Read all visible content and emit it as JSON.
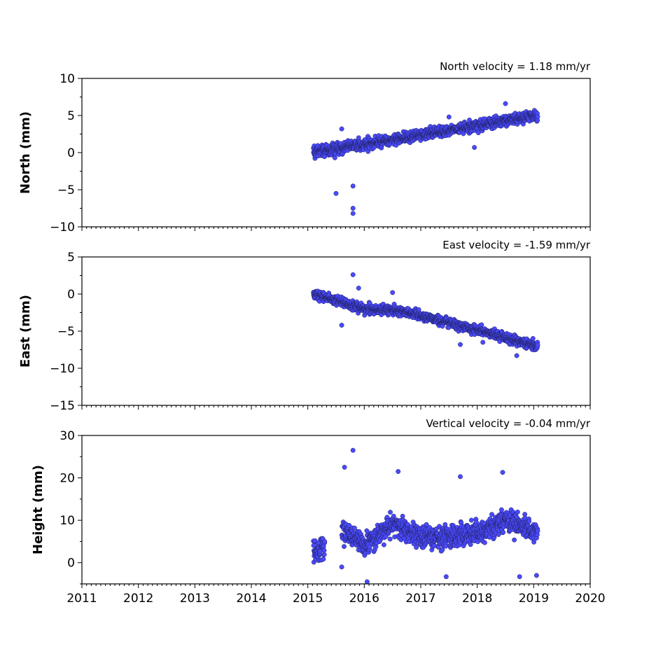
{
  "chart_data": [
    {
      "type": "scatter",
      "title": "North velocity = 1.18 mm/yr",
      "ylabel": "North (mm)",
      "xlabel": "",
      "xlim": [
        2011,
        2020
      ],
      "ylim": [
        -10,
        10
      ],
      "yticks": [
        10,
        5,
        0,
        -5,
        -10
      ],
      "xticks": [
        2011,
        2012,
        2013,
        2014,
        2015,
        2016,
        2017,
        2018,
        2019,
        2020
      ],
      "x_tick_labels_visible": false,
      "marker_color": "#4a4aff",
      "data_range": [
        2015.1,
        2019.07
      ],
      "trend_at": [
        [
          2015.1,
          0.0
        ],
        [
          2019.07,
          5.0
        ]
      ],
      "scatter_sd": 0.9,
      "outliers": [
        [
          2015.5,
          -5.5
        ],
        [
          2015.6,
          3.2
        ],
        [
          2015.8,
          -4.5
        ],
        [
          2015.8,
          -7.5
        ],
        [
          2015.8,
          -8.2
        ],
        [
          2015.9,
          2.0
        ],
        [
          2017.5,
          4.8
        ],
        [
          2017.95,
          0.7
        ],
        [
          2018.5,
          6.6
        ]
      ]
    },
    {
      "type": "scatter",
      "title": "East velocity = -1.59 mm/yr",
      "ylabel": "East (mm)",
      "xlabel": "",
      "xlim": [
        2011,
        2020
      ],
      "ylim": [
        -15,
        5
      ],
      "yticks": [
        5,
        0,
        -5,
        -10,
        -15
      ],
      "xticks": [
        2011,
        2012,
        2013,
        2014,
        2015,
        2016,
        2017,
        2018,
        2019,
        2020
      ],
      "x_tick_labels_visible": false,
      "marker_color": "#4a4aff",
      "data_range": [
        2015.1,
        2019.07
      ],
      "trend_at": [
        [
          2015.1,
          0.0
        ],
        [
          2016.0,
          -2.0
        ],
        [
          2016.7,
          -2.3
        ],
        [
          2019.07,
          -7.0
        ]
      ],
      "scatter_sd": 0.8,
      "outliers": [
        [
          2015.8,
          2.6
        ],
        [
          2015.9,
          0.8
        ],
        [
          2015.6,
          -4.2
        ],
        [
          2016.5,
          0.2
        ],
        [
          2017.7,
          -6.8
        ],
        [
          2018.1,
          -6.5
        ],
        [
          2018.7,
          -8.3
        ]
      ]
    },
    {
      "type": "scatter",
      "title": "Vertical velocity = -0.04 mm/yr",
      "ylabel": "Height (mm)",
      "xlabel": "",
      "xlim": [
        2011,
        2020
      ],
      "ylim": [
        -5,
        30
      ],
      "yticks": [
        30,
        20,
        10,
        0
      ],
      "xticks": [
        2011,
        2012,
        2013,
        2014,
        2015,
        2016,
        2017,
        2018,
        2019,
        2020
      ],
      "x_tick_labels": [
        "2011",
        "2012",
        "2013",
        "2014",
        "2015",
        "2016",
        "2017",
        "2018",
        "2019",
        "2020"
      ],
      "x_tick_labels_visible": true,
      "marker_color": "#4a4aff",
      "data_range": [
        2015.1,
        2019.07
      ],
      "gaps": [
        [
          2015.3,
          2015.6
        ]
      ],
      "trend_at": [
        [
          2015.1,
          3.0
        ],
        [
          2015.3,
          3.0
        ],
        [
          2015.6,
          8.0
        ],
        [
          2016.0,
          4.0
        ],
        [
          2016.5,
          9.0
        ],
        [
          2017.0,
          6.0
        ],
        [
          2017.5,
          6.0
        ],
        [
          2018.0,
          7.0
        ],
        [
          2018.5,
          10.0
        ],
        [
          2019.07,
          7.0
        ]
      ],
      "scatter_sd": 3.2,
      "outliers": [
        [
          2015.8,
          26.5
        ],
        [
          2015.65,
          22.5
        ],
        [
          2016.6,
          21.5
        ],
        [
          2017.7,
          20.3
        ],
        [
          2018.45,
          21.3
        ],
        [
          2016.05,
          -4.5
        ],
        [
          2015.6,
          -1.0
        ],
        [
          2017.45,
          -3.3
        ],
        [
          2018.75,
          -3.3
        ],
        [
          2019.05,
          -3.0
        ]
      ]
    }
  ]
}
